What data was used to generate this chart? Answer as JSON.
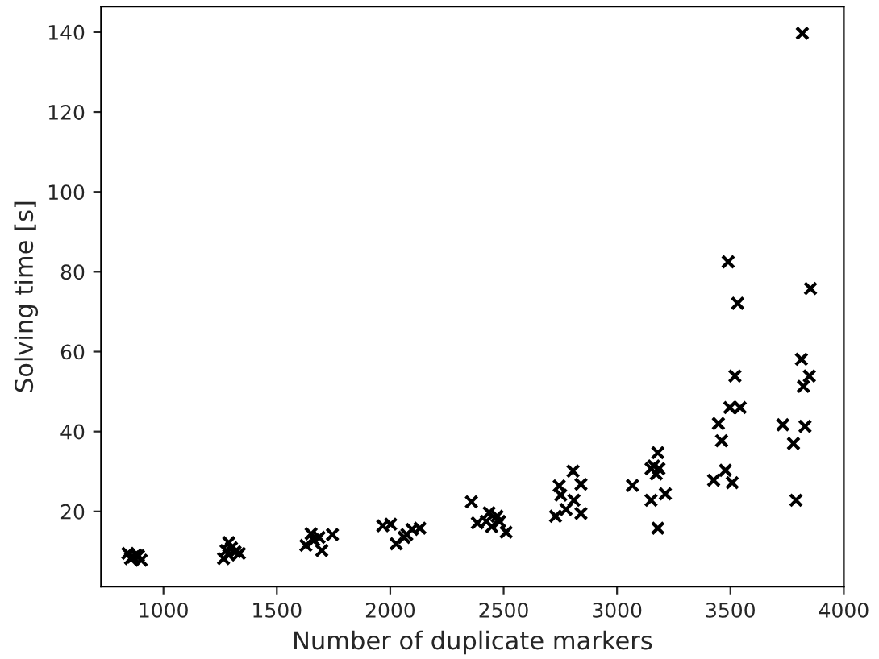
{
  "chart_data": {
    "type": "scatter",
    "xlabel": "Number of duplicate markers",
    "ylabel": "Solving time [s]",
    "marker": "cross",
    "grid": false,
    "xlim": [
      725,
      4000
    ],
    "ylim": [
      1.2,
      146.4
    ],
    "xticks": [
      1000,
      1500,
      2000,
      2500,
      3000,
      3500,
      4000
    ],
    "yticks": [
      20,
      40,
      60,
      80,
      100,
      120,
      140
    ],
    "series": [
      {
        "color": "#000000",
        "x": [
          843,
          866,
          890,
          902,
          855,
          878,
          1265,
          1276,
          1288,
          1300,
          1288,
          1335,
          1316,
          1628,
          1651,
          1663,
          1686,
          1698,
          1745,
          1967,
          2002,
          2026,
          2073,
          2096,
          2131,
          2061,
          2358,
          2384,
          2436,
          2447,
          2471,
          2482,
          2511,
          2424,
          2729,
          2745,
          2752,
          2775,
          2806,
          2810,
          2841,
          2841,
          3068,
          3150,
          3162,
          3173,
          3180,
          3185,
          3180,
          3213,
          3150,
          3426,
          3478,
          3508,
          3447,
          3461,
          3490,
          3532,
          3520,
          3497,
          3543,
          3731,
          3778,
          3789,
          3813,
          3822,
          3848,
          3829,
          3853,
          3817
        ],
        "values": [
          9.5,
          8.6,
          8.9,
          7.8,
          8.2,
          9.1,
          8.2,
          10.2,
          12.2,
          10.9,
          9.1,
          9.5,
          9.9,
          11.5,
          14.4,
          12.8,
          13.5,
          10.2,
          14.2,
          16.4,
          16.8,
          11.9,
          14.2,
          15.5,
          15.8,
          13.5,
          22.4,
          17.1,
          19.7,
          16.2,
          18.8,
          17.5,
          14.8,
          17.5,
          18.8,
          26.4,
          24.1,
          20.5,
          30.1,
          22.8,
          26.8,
          19.5,
          26.5,
          22.8,
          31.4,
          29.4,
          34.7,
          30.7,
          15.8,
          24.4,
          30.7,
          27.8,
          30.3,
          27.2,
          42.0,
          37.7,
          82.5,
          72.1,
          53.9,
          46.0,
          46.0,
          41.7,
          37.0,
          22.8,
          58.1,
          51.3,
          53.9,
          41.3,
          75.8,
          139.7
        ]
      }
    ]
  }
}
